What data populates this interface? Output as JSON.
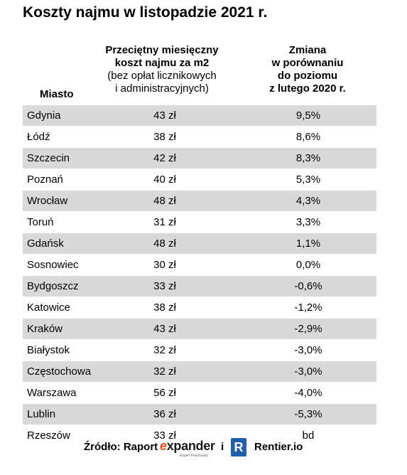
{
  "title": "Koszty najmu w listopadzie 2021 r.",
  "columns": {
    "city": "Miasto",
    "cost": {
      "line1": "Przeciętny miesięczny",
      "line2": "koszt najmu za m2",
      "line3": "(bez opłat licznikowych",
      "line4": "i administracyjnych)"
    },
    "change": {
      "line1": "Zmiana",
      "line2": "w porównaniu",
      "line3": "do poziomu",
      "line4": "z lutego 2020 r."
    }
  },
  "rows": [
    {
      "city": "Gdynia",
      "cost": "43 zł",
      "change": "9,5%"
    },
    {
      "city": "Łódź",
      "cost": "38 zł",
      "change": "8,6%"
    },
    {
      "city": "Szczecin",
      "cost": "42 zł",
      "change": "8,3%"
    },
    {
      "city": "Poznań",
      "cost": "40 zł",
      "change": "5,3%"
    },
    {
      "city": "Wrocław",
      "cost": "48 zł",
      "change": "4,3%"
    },
    {
      "city": "Toruń",
      "cost": "31 zł",
      "change": "3,3%"
    },
    {
      "city": "Gdańsk",
      "cost": "48 zł",
      "change": "1,1%"
    },
    {
      "city": "Sosnowiec",
      "cost": "30 zł",
      "change": "0,0%"
    },
    {
      "city": "Bydgoszcz",
      "cost": "33 zł",
      "change": "-0,6%"
    },
    {
      "city": "Katowice",
      "cost": "38 zł",
      "change": "-1,2%"
    },
    {
      "city": "Kraków",
      "cost": "43 zł",
      "change": "-2,9%"
    },
    {
      "city": "Białystok",
      "cost": "32 zł",
      "change": "-3,0%"
    },
    {
      "city": "Częstochowa",
      "cost": "32 zł",
      "change": "-3,0%"
    },
    {
      "city": "Warszawa",
      "cost": "56 zł",
      "change": "-4,0%"
    },
    {
      "city": "Lublin",
      "cost": "36 zł",
      "change": "-5,3%"
    },
    {
      "city": "Rzeszów",
      "cost": "33 zł",
      "change": "bd"
    }
  ],
  "footer": {
    "source_label": "Źródło: Raport",
    "expander_prefix": "e",
    "expander_suffix": "xpander",
    "expander_tagline": "Expert Finansowy",
    "conjunction": "i",
    "rentier_icon_letter": "R",
    "rentier_label": "Rentier.io"
  },
  "colors": {
    "row_shade": "#d9d9d9",
    "expander_accent": "#e8481c",
    "rentier_blue": "#1f5fa8"
  }
}
